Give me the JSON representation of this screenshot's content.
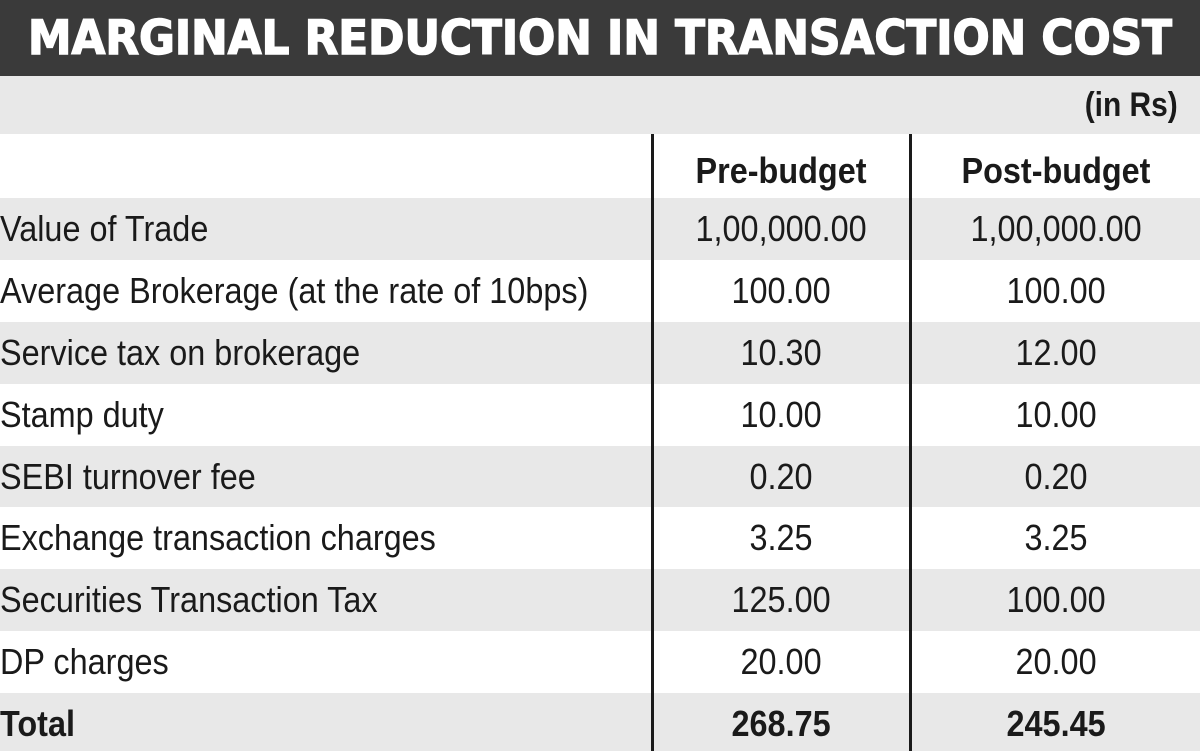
{
  "title": "MARGINAL REDUCTION IN TRANSACTION COST",
  "unit_note": "(in Rs)",
  "columns": {
    "pre": "Pre-budget",
    "post": "Post-budget"
  },
  "rows": [
    {
      "label": "Value of Trade",
      "pre": "1,00,000.00",
      "post": "1,00,000.00"
    },
    {
      "label": "Average Brokerage (at the rate of 10bps)",
      "pre": "100.00",
      "post": "100.00"
    },
    {
      "label": "Service tax on brokerage",
      "pre": "10.30",
      "post": "12.00"
    },
    {
      "label": "Stamp duty",
      "pre": "10.00",
      "post": "10.00"
    },
    {
      "label": "SEBI turnover fee",
      "pre": "0.20",
      "post": "0.20"
    },
    {
      "label": "Exchange transaction charges",
      "pre": "3.25",
      "post": "3.25"
    },
    {
      "label": "Securities Transaction Tax",
      "pre": "125.00",
      "post": "100.00"
    },
    {
      "label": "DP charges",
      "pre": "20.00",
      "post": "20.00"
    }
  ],
  "total": {
    "label": "Total",
    "pre": "268.75",
    "post": "245.45"
  },
  "colors": {
    "title_bar": "#3a3a3a",
    "title_text": "#ffffff",
    "band": "#e8e8e8",
    "text": "#1a1a1a"
  }
}
